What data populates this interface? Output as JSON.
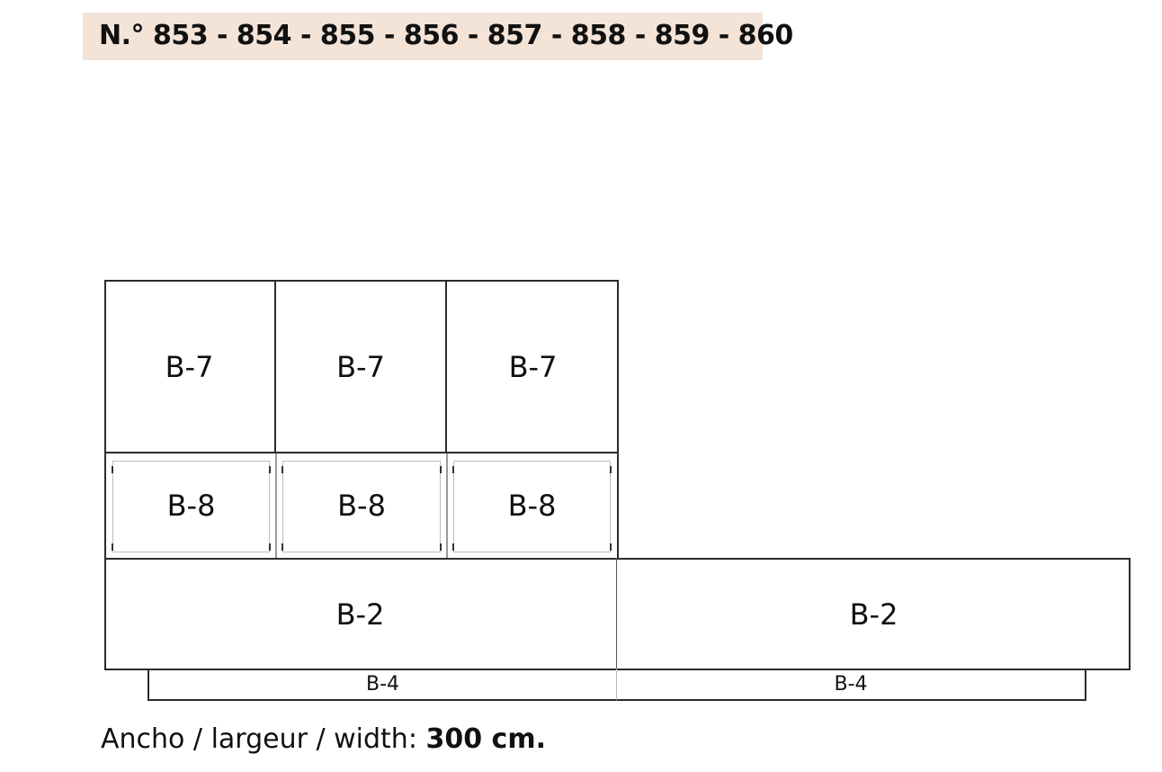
{
  "title": "N.° 853 - 854 - 855 - 856 - 857 - 858 - 859 - 860",
  "modules": {
    "top_row": [
      "B-7",
      "B-7",
      "B-7"
    ],
    "middle_row": [
      "B-8",
      "B-8",
      "B-8"
    ],
    "base_row": [
      "B-2",
      "B-2"
    ],
    "plinth_row": [
      "B-4",
      "B-4"
    ]
  },
  "width": {
    "label": "Ancho / largeur / width:",
    "value": "300 cm."
  },
  "colors": {
    "title_band": "#f4e3d7",
    "line": "#2b2b2b"
  }
}
